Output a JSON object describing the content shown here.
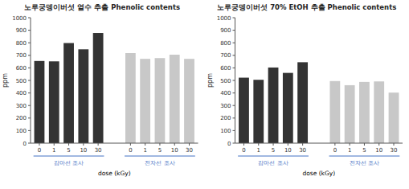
{
  "chart_data": [
    {
      "type": "bar",
      "title": "노루궁뎅이버섯 열수 추출 Phenolic contents",
      "categories": [
        "0",
        "1",
        "5",
        "10",
        "30"
      ],
      "series": [
        {
          "name": "감마선 조사",
          "color": "#333333",
          "values": [
            655,
            652,
            798,
            748,
            878
          ]
        },
        {
          "name": "전자선 조사",
          "color": "#c8c8c8",
          "values": [
            718,
            672,
            678,
            705,
            672
          ]
        }
      ],
      "xlabel": "dose (kGy)",
      "ylabel": "ppm",
      "ylim": [
        0,
        1000
      ],
      "yticks": [
        0,
        100,
        200,
        300,
        400,
        500,
        600,
        700,
        800,
        900,
        1000
      ],
      "grid": false
    },
    {
      "type": "bar",
      "title": "노루궁뎅이버섯 70% EtOH 추출 Phenolic contents",
      "categories": [
        "0",
        "1",
        "5",
        "10",
        "30"
      ],
      "series": [
        {
          "name": "감마선 조사",
          "color": "#333333",
          "values": [
            522,
            505,
            603,
            560,
            645
          ]
        },
        {
          "name": "전자선 조사",
          "color": "#c8c8c8",
          "values": [
            495,
            462,
            488,
            492,
            403
          ]
        }
      ],
      "xlabel": "dose (kGy)",
      "ylabel": "ppm",
      "ylim": [
        0,
        1000
      ],
      "yticks": [
        0,
        100,
        200,
        300,
        400,
        500,
        600,
        700,
        800,
        900,
        1000
      ],
      "grid": false
    }
  ]
}
